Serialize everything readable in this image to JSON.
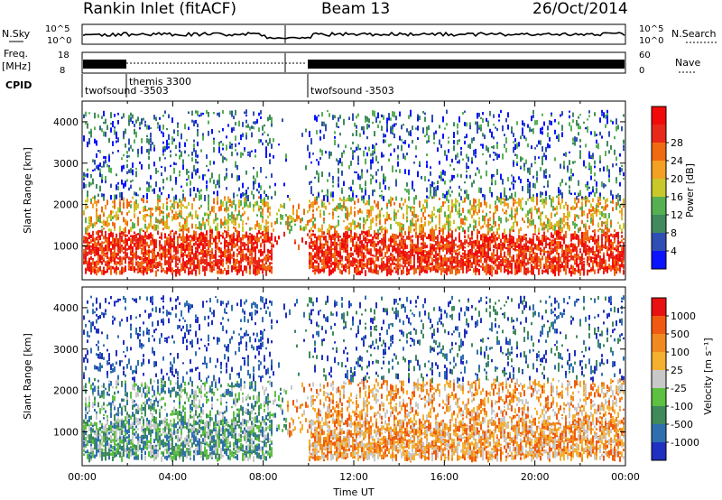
{
  "header": {
    "station": "Rankin Inlet (fitACF)",
    "beam": "Beam 13",
    "date": "26/Oct/2014"
  },
  "top_panels": {
    "nsky_label": "N.Sky",
    "nsearch_label": "N.Search",
    "nsky_ticks": [
      "10^5",
      "10^0"
    ],
    "nsearch_ticks": [
      "10^5",
      "10^0"
    ],
    "freq_label_line1": "Freq.",
    "freq_label_line2": "[MHz]",
    "freq_ticks": [
      "18",
      "8"
    ],
    "nave_label": "Nave",
    "nave_ticks": [
      "60",
      "0"
    ],
    "cpid_label": "CPID",
    "cpid_entries": [
      {
        "label": "twofsound -3503",
        "start_hour": 0.0
      },
      {
        "label": "themis 3300",
        "start_hour": 2.0
      },
      {
        "label": "twofsound -3503",
        "start_hour": 10.0
      }
    ]
  },
  "chart_data": [
    {
      "type": "heatmap",
      "name": "power-panel",
      "ylabel": "Slant Range [km]",
      "xlabel": "",
      "x_ticks": [
        "00:00",
        "04:00",
        "08:00",
        "12:00",
        "16:00",
        "20:00",
        "00:00"
      ],
      "x_range_hours": [
        0,
        24
      ],
      "y_range_km": [
        180,
        4500
      ],
      "y_ticks": [
        1000,
        2000,
        3000,
        4000
      ],
      "colorbar": {
        "label": "Power [dB]",
        "ticks": [
          4,
          8,
          12,
          16,
          20,
          24,
          28
        ],
        "colors": [
          "#0a14ff",
          "#2f4fb4",
          "#3f8a5e",
          "#56b052",
          "#c9c82a",
          "#f3a023",
          "#f06a12",
          "#e8291a",
          "#f20a0a"
        ]
      }
    },
    {
      "type": "heatmap",
      "name": "velocity-panel",
      "ylabel": "Slant Range [km]",
      "xlabel": "Time UT",
      "x_ticks": [
        "00:00",
        "04:00",
        "08:00",
        "12:00",
        "16:00",
        "20:00",
        "00:00"
      ],
      "x_range_hours": [
        0,
        24
      ],
      "y_range_km": [
        180,
        4500
      ],
      "y_ticks": [
        1000,
        2000,
        3000,
        4000
      ],
      "colorbar": {
        "label": "Velocity [m s⁻¹]",
        "ticks": [
          "1000",
          "500",
          "100",
          "25",
          "-25",
          "-100",
          "-500",
          "-1000"
        ],
        "colors": [
          "#2030c0",
          "#2f6fb0",
          "#3e8a5a",
          "#5cc040",
          "#c8c8c8",
          "#f5b030",
          "#f08a20",
          "#f05a10",
          "#e81010"
        ]
      }
    }
  ]
}
